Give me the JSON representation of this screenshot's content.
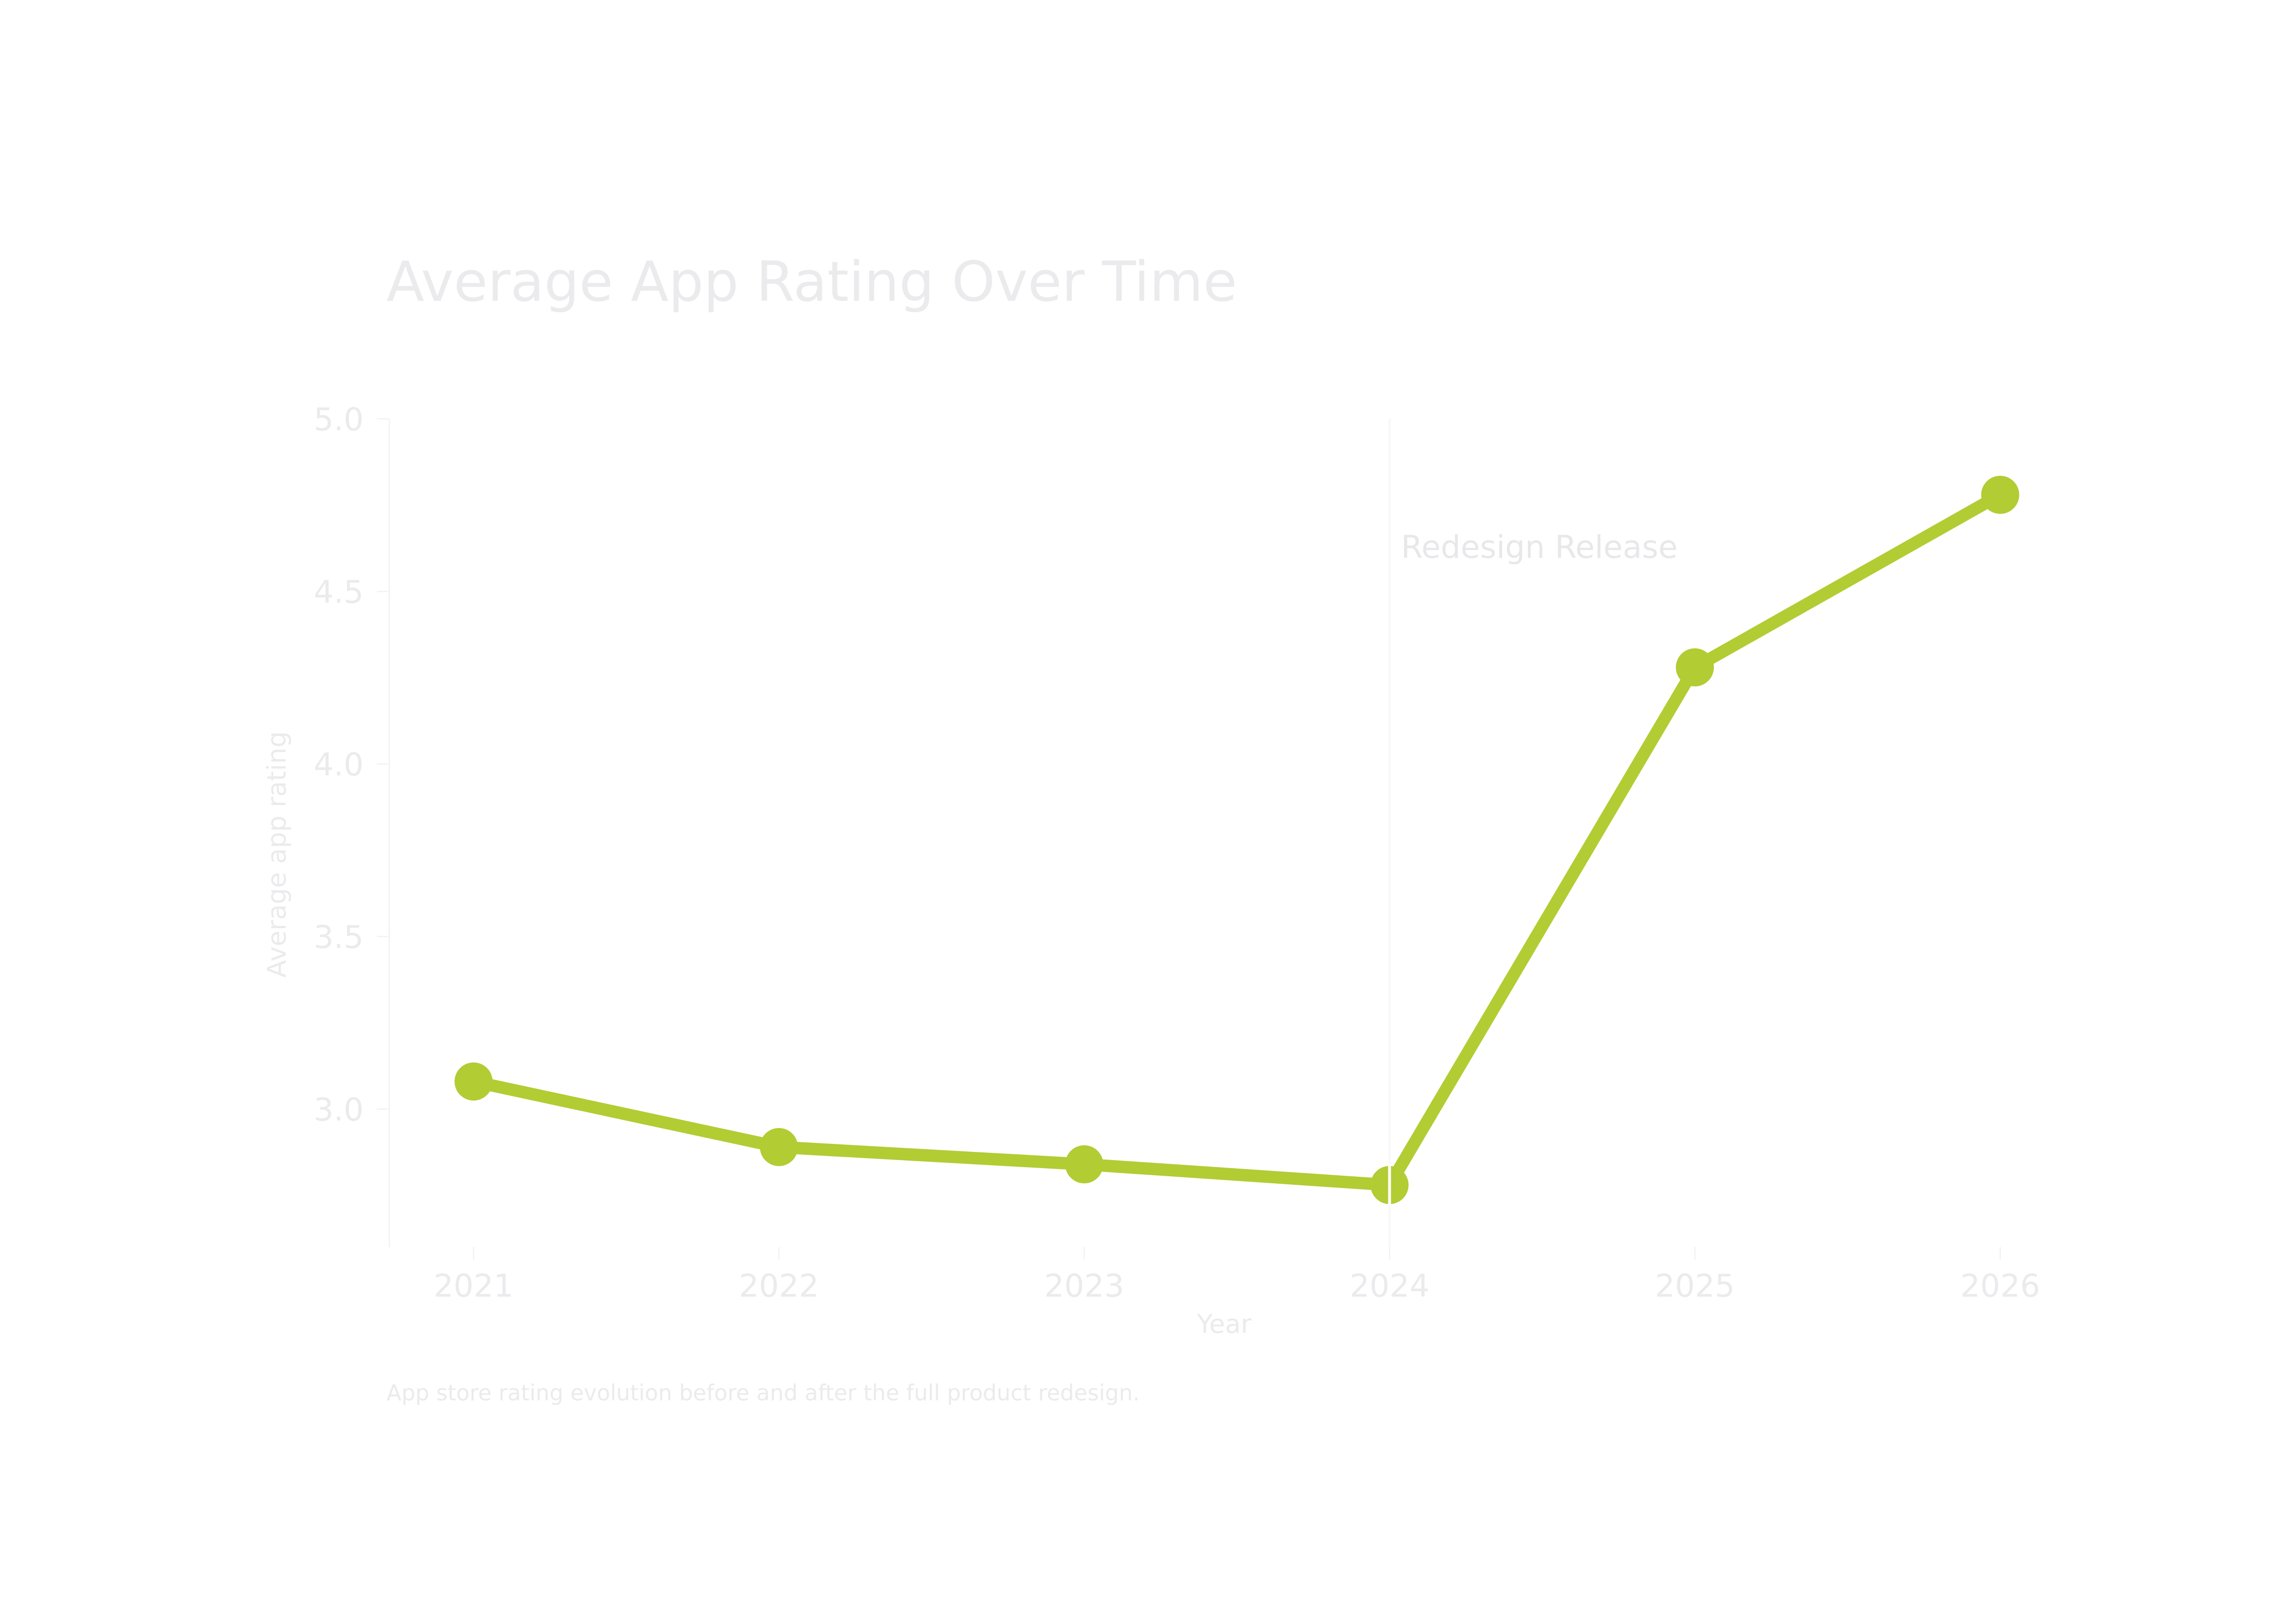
{
  "chart_data": {
    "type": "line",
    "title": "Average App Rating Over Time",
    "caption": "App store rating evolution before and after the full product redesign.",
    "xlabel": "Year",
    "ylabel": "Average app rating",
    "categories": [
      "2021",
      "2022",
      "2023",
      "2024",
      "2025",
      "2026"
    ],
    "series": [
      {
        "name": "Average app rating",
        "values": [
          3.08,
          2.89,
          2.84,
          2.78,
          4.28,
          4.78
        ]
      }
    ],
    "ylim": [
      2.6,
      5.0
    ],
    "yticks": [
      3.0,
      3.5,
      4.0,
      4.5,
      5.0
    ],
    "ytick_labels": [
      "3.0",
      "3.5",
      "4.0",
      "4.5",
      "5.0"
    ],
    "annotation": {
      "label": "Redesign Release",
      "x": "2024"
    },
    "grid": false,
    "colors": {
      "line": "#b2cc33",
      "text": "#ebebed",
      "axis": "#f3f3f5"
    }
  }
}
